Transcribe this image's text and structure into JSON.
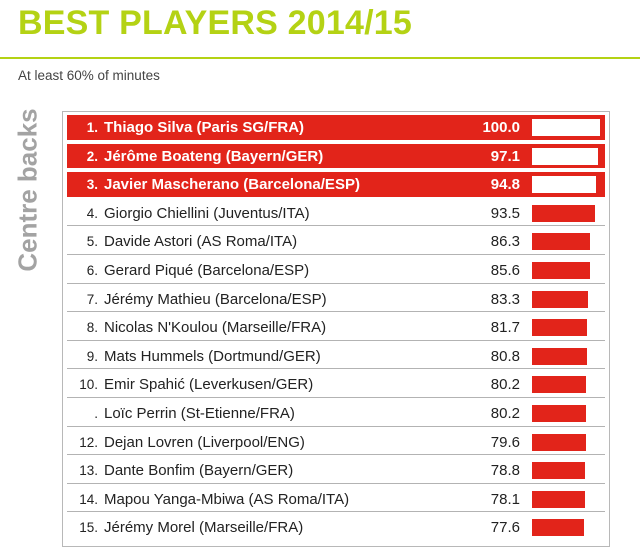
{
  "title": "BEST PLAYERS 2014/15",
  "subtitle": "At least 60% of minutes",
  "category": "Centre backs",
  "colors": {
    "accent": "#b4d214",
    "highlight": "#e2241a",
    "category_text": "#a3a3a3"
  },
  "chart_data": {
    "type": "bar",
    "orientation": "horizontal",
    "title": "BEST PLAYERS 2014/15",
    "subtitle": "At least 60% of minutes",
    "xlim": [
      0,
      100
    ],
    "rows": [
      {
        "rank": "1.",
        "name": "Thiago Silva (Paris SG/FRA)",
        "score_text": "100.0",
        "score": 100.0,
        "highlight": true
      },
      {
        "rank": "2.",
        "name": "Jérôme Boateng (Bayern/GER)",
        "score_text": "97.1",
        "score": 97.1,
        "highlight": true
      },
      {
        "rank": "3.",
        "name": "Javier Mascherano (Barcelona/ESP)",
        "score_text": "94.8",
        "score": 94.8,
        "highlight": true
      },
      {
        "rank": "4.",
        "name": "Giorgio Chiellini (Juventus/ITA)",
        "score_text": "93.5",
        "score": 93.5,
        "highlight": false
      },
      {
        "rank": "5.",
        "name": "Davide Astori (AS Roma/ITA)",
        "score_text": "86.3",
        "score": 86.3,
        "highlight": false
      },
      {
        "rank": "6.",
        "name": "Gerard Piqué (Barcelona/ESP)",
        "score_text": "85.6",
        "score": 85.6,
        "highlight": false
      },
      {
        "rank": "7.",
        "name": "Jérémy Mathieu (Barcelona/ESP)",
        "score_text": "83.3",
        "score": 83.3,
        "highlight": false
      },
      {
        "rank": "8.",
        "name": "Nicolas N'Koulou (Marseille/FRA)",
        "score_text": "81.7",
        "score": 81.7,
        "highlight": false
      },
      {
        "rank": "9.",
        "name": "Mats Hummels (Dortmund/GER)",
        "score_text": "80.8",
        "score": 80.8,
        "highlight": false
      },
      {
        "rank": "10.",
        "name": "Emir Spahić (Leverkusen/GER)",
        "score_text": "80.2",
        "score": 80.2,
        "highlight": false
      },
      {
        "rank": ".",
        "name": "Loïc Perrin (St-Etienne/FRA)",
        "score_text": "80.2",
        "score": 80.2,
        "highlight": false
      },
      {
        "rank": "12.",
        "name": "Dejan Lovren (Liverpool/ENG)",
        "score_text": "79.6",
        "score": 79.6,
        "highlight": false
      },
      {
        "rank": "13.",
        "name": "Dante Bonfim (Bayern/GER)",
        "score_text": "78.8",
        "score": 78.8,
        "highlight": false
      },
      {
        "rank": "14.",
        "name": "Mapou Yanga-Mbiwa (AS Roma/ITA)",
        "score_text": "78.1",
        "score": 78.1,
        "highlight": false
      },
      {
        "rank": "15.",
        "name": "Jérémy Morel (Marseille/FRA)",
        "score_text": "77.6",
        "score": 77.6,
        "highlight": false
      }
    ]
  }
}
